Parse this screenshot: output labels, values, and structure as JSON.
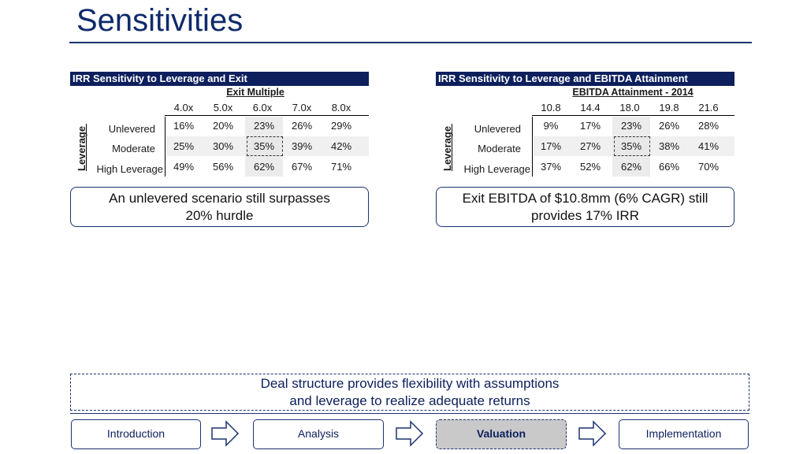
{
  "page": {
    "title": "Sensitivities"
  },
  "left_table": {
    "header": "IRR Sensitivity to Leverage and Exit",
    "axis_title": "Exit Multiple",
    "columns": [
      "4.0x",
      "5.0x",
      "6.0x",
      "7.0x",
      "8.0x"
    ],
    "row_axis_label": "Leverage",
    "rows": [
      {
        "label": "Unlevered",
        "values": [
          "16%",
          "20%",
          "23%",
          "26%",
          "29%"
        ]
      },
      {
        "label": "Moderate",
        "values": [
          "25%",
          "30%",
          "35%",
          "39%",
          "42%"
        ]
      },
      {
        "label": "High Leverage",
        "values": [
          "49%",
          "56%",
          "62%",
          "67%",
          "71%"
        ]
      }
    ],
    "callout": [
      "An unlevered scenario still surpasses",
      "20% hurdle"
    ]
  },
  "right_table": {
    "header": "IRR Sensitivity to Leverage and EBITDA Attainment",
    "axis_title": "EBITDA Attainment - 2014",
    "columns": [
      "10.8",
      "14.4",
      "18.0",
      "19.8",
      "21.6"
    ],
    "row_axis_label": "Leverage",
    "rows": [
      {
        "label": "Unlevered",
        "values": [
          "9%",
          "17%",
          "23%",
          "26%",
          "28%"
        ]
      },
      {
        "label": "Moderate",
        "values": [
          "17%",
          "27%",
          "35%",
          "38%",
          "41%"
        ]
      },
      {
        "label": "High Leverage",
        "values": [
          "37%",
          "52%",
          "62%",
          "66%",
          "70%"
        ]
      }
    ],
    "callout": [
      "Exit EBITDA of $10.8mm (6% CAGR) still",
      "provides 17% IRR"
    ]
  },
  "summary": [
    "Deal structure provides flexibility with assumptions",
    "and leverage to realize adequate returns"
  ],
  "nav": {
    "steps": [
      "Introduction",
      "Analysis",
      "Valuation",
      "Implementation"
    ],
    "active": "Valuation",
    "arrow_icon": "right-arrow-icon"
  },
  "colors": {
    "navy": "#0d1f5c",
    "title": "#0f2a6b",
    "highlight": "#c9c9c9"
  }
}
